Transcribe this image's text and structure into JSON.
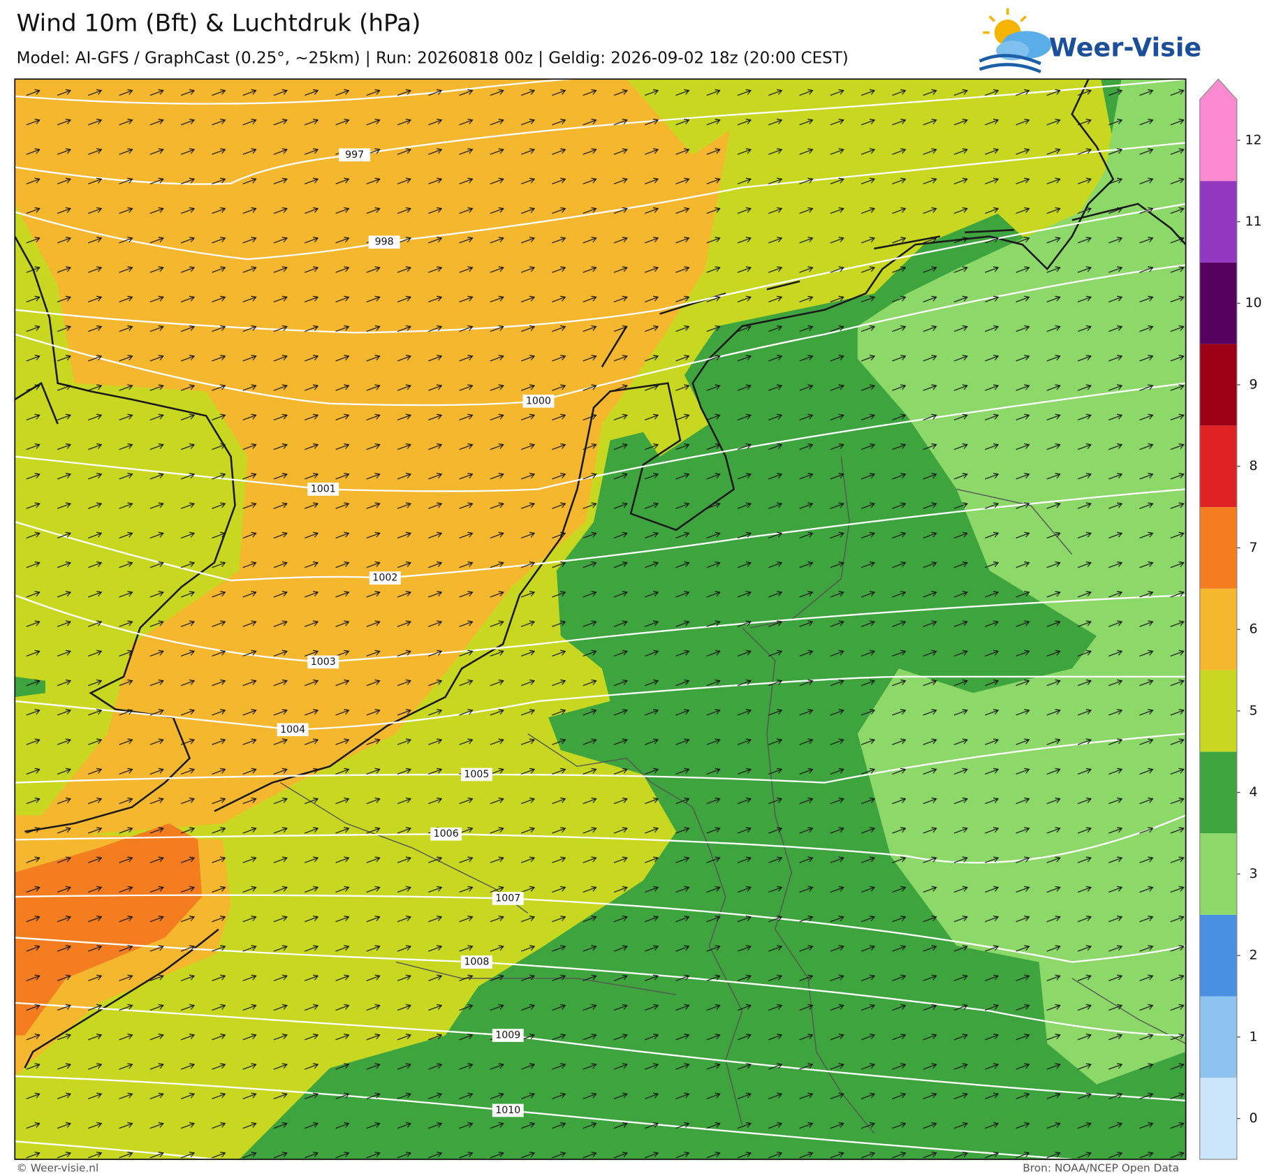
{
  "header": {
    "title": "Wind 10m (Bft) & Luchtdruk (hPa)",
    "subtitle": "Model: AI-GFS / GraphCast (0.25°, ~25km)  |  Run: 20260818 00z  |  Geldig: 2026-09-02 18z (20:00 CEST)"
  },
  "logo": {
    "text": "Weer-Visie"
  },
  "colorbar": {
    "ticks": [
      0,
      1,
      2,
      3,
      4,
      5,
      6,
      7,
      8,
      9,
      10,
      11,
      12
    ],
    "colors": [
      "#cce6fb",
      "#8fc3ef",
      "#4a90e2",
      "#8cd868",
      "#3ea53e",
      "#c8d820",
      "#f5b72d",
      "#f47d20",
      "#df2222",
      "#9b0014",
      "#560060",
      "#9237c0",
      "#fb8ad0"
    ]
  },
  "isobars": {
    "labels": [
      997,
      998,
      1000,
      1001,
      1002,
      1003,
      1004,
      1005,
      1006,
      1007,
      1008,
      1009,
      1010
    ]
  },
  "footer": {
    "left": "© Weer-visie.nl",
    "right": "Bron: NOAA/NCEP Open Data"
  }
}
